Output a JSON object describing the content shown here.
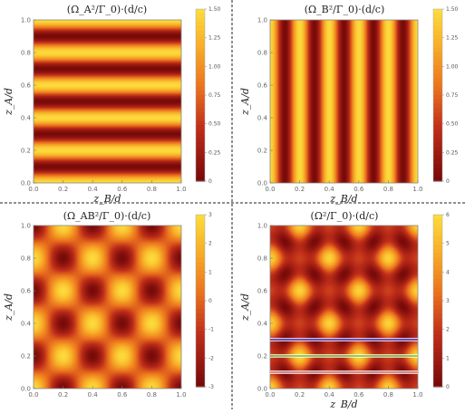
{
  "chart_data": [
    {
      "type": "heatmap",
      "title": "(Ω_A²/Γ_0)·(d/c)",
      "xlabel": "z_B/d",
      "ylabel": "z_A/d",
      "xlim": [
        0,
        1
      ],
      "ylim": [
        0,
        1
      ],
      "x_ticks": [
        "0.0",
        "0.2",
        "0.4",
        "0.6",
        "0.8",
        "1.0"
      ],
      "y_ticks": [
        "0.0",
        "0.2",
        "0.4",
        "0.6",
        "0.8",
        "1.0"
      ],
      "show_x_label": true,
      "show_y_label": true,
      "pattern": "horizontal_stripes",
      "field": "cos2_za",
      "colorbar": {
        "min": 0,
        "max": 1.5,
        "ticks": [
          "0",
          "0.25",
          "0.50",
          "0.75",
          "1.00",
          "1.25",
          "1.50"
        ]
      },
      "overlay_lines": []
    },
    {
      "type": "heatmap",
      "title": "(Ω_B²/Γ_0)·(d/c)",
      "xlabel": "z_B/d",
      "ylabel": "z_A/d",
      "xlim": [
        0,
        1
      ],
      "ylim": [
        0,
        1
      ],
      "x_ticks": [
        "0.0",
        "0.2",
        "0.4",
        "0.6",
        "0.8",
        "1.0"
      ],
      "y_ticks": [
        "0.0",
        "0.2",
        "0.4",
        "0.6",
        "0.8",
        "1.0"
      ],
      "show_x_label": true,
      "show_y_label": true,
      "pattern": "vertical_stripes",
      "field": "cos2_zb",
      "colorbar": {
        "min": 0,
        "max": 1.5,
        "ticks": [
          "0",
          "0.25",
          "0.50",
          "0.75",
          "1.00",
          "1.25",
          "1.50"
        ]
      },
      "overlay_lines": []
    },
    {
      "type": "heatmap",
      "title": "(Ω_AB²/Γ_0)·(d/c)",
      "xlabel": "",
      "ylabel": "z_A/d",
      "xlim": [
        0,
        1
      ],
      "ylim": [
        0,
        1
      ],
      "x_ticks": [
        "0.0",
        "0.2",
        "0.4",
        "0.6",
        "0.8",
        "1.0"
      ],
      "y_ticks": [
        "0.0",
        "0.2",
        "0.4",
        "0.6",
        "0.8",
        "1.0"
      ],
      "show_x_label": false,
      "show_y_label": true,
      "pattern": "checkerboard",
      "field": "product",
      "colorbar": {
        "min": -3,
        "max": 3,
        "ticks": [
          "-3",
          "-2",
          "-1",
          "0",
          "1",
          "2",
          "3"
        ]
      },
      "overlay_lines": []
    },
    {
      "type": "heatmap",
      "title": "(Ω²/Γ_0)·(d/c)",
      "xlabel": "z_B/d",
      "ylabel": "z_A/d",
      "xlim": [
        0,
        1
      ],
      "ylim": [
        0,
        1
      ],
      "x_ticks": [
        "0.0",
        "0.2",
        "0.4",
        "0.6",
        "0.8",
        "1.0"
      ],
      "y_ticks": [
        "0.0",
        "0.2",
        "0.4",
        "0.6",
        "0.8",
        "1.0"
      ],
      "show_x_label": true,
      "show_y_label": true,
      "pattern": "checkerboard_total",
      "field": "total",
      "colorbar": {
        "min": 0,
        "max": 6,
        "ticks": [
          "0",
          "1",
          "2",
          "3",
          "4",
          "5",
          "6"
        ]
      },
      "overlay_lines": [
        {
          "y": 0.3,
          "color": "#3b3bd9"
        },
        {
          "y": 0.2,
          "color": "#6ccc3c"
        },
        {
          "y": 0.1,
          "color": "#d98a8a"
        }
      ]
    }
  ],
  "colors": {
    "low": "#7a0a0a",
    "mid_low": "#c0341a",
    "mid": "#ef8a1d",
    "high": "#fbd43a",
    "divider": "#222222"
  }
}
